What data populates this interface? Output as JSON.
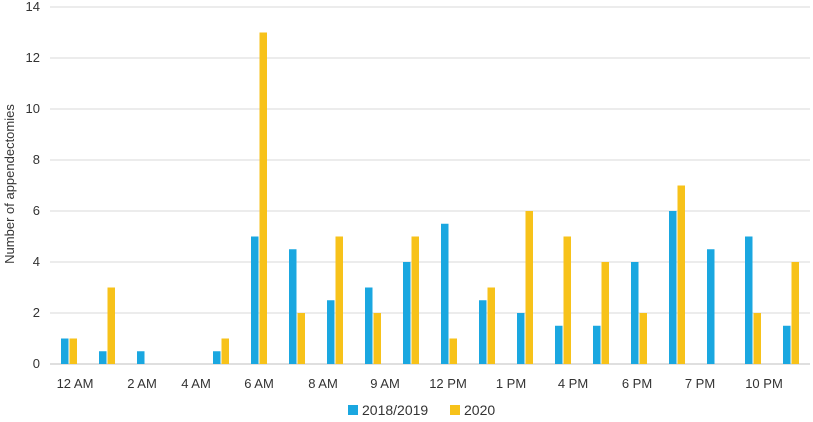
{
  "chart_data": {
    "type": "bar",
    "ylabel": "Number of appendectomies",
    "ylim": [
      0,
      14
    ],
    "yticks": [
      0,
      2,
      4,
      6,
      8,
      10,
      12,
      14
    ],
    "ytick_labels": [
      "0",
      "2",
      "4",
      "6",
      "8",
      "10",
      "12",
      "14"
    ],
    "grid": true,
    "legend_position": "bottom",
    "xtick_labels": [
      "12 AM",
      "2 AM",
      "4 AM",
      "6 AM",
      "8 AM",
      "9 AM",
      "12 PM",
      "1 PM",
      "4 PM",
      "6 PM",
      "7 PM",
      "10 PM"
    ],
    "series": [
      {
        "name": "2018/2019",
        "color": "#1AA7E0",
        "values": [
          1,
          0.5,
          0.5,
          0,
          0.5,
          5,
          4.5,
          2.5,
          3,
          4,
          5.5,
          2.5,
          2,
          1.5,
          1.5,
          4,
          6,
          4.5,
          5,
          1.5
        ]
      },
      {
        "name": "2020",
        "color": "#F7C21A",
        "values": [
          1,
          3,
          0,
          0,
          1,
          13,
          2,
          5,
          2,
          5,
          1,
          3,
          6,
          5,
          4,
          2,
          7,
          0,
          2,
          4
        ]
      }
    ]
  }
}
